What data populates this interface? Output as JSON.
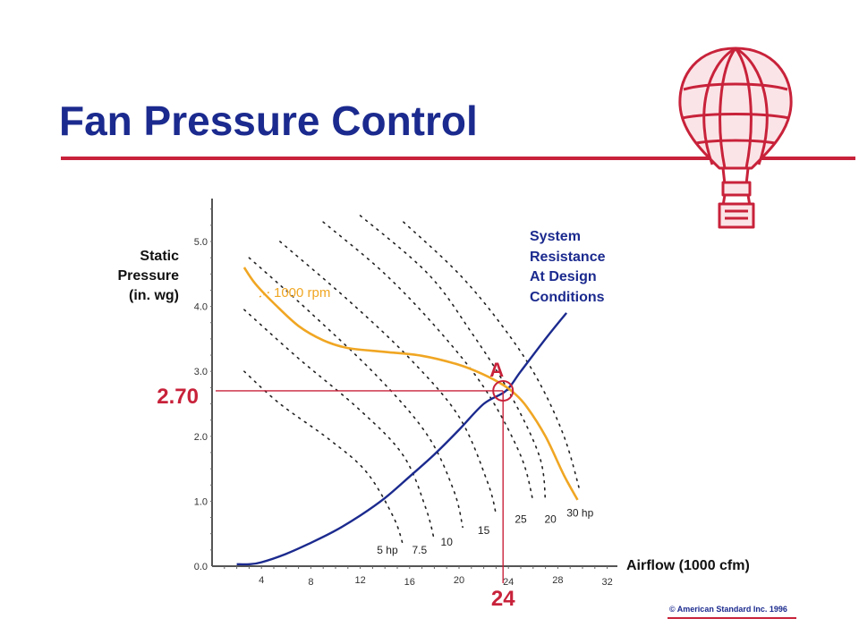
{
  "slide": {
    "title": "Fan Pressure Control",
    "copyright": "© American Standard Inc. 1996"
  },
  "colors": {
    "title": "#1b2a8e",
    "accent_red": "#c8223a",
    "fan_curve": "#f0a623",
    "system_curve": "#1b2a8e"
  },
  "chart_data": {
    "type": "line",
    "ylabel_lines": [
      "Static",
      "Pressure",
      "(in. wg)"
    ],
    "xlabel": "Airflow (1000 cfm)",
    "x_ticks": [
      "4",
      "8",
      "12",
      "16",
      "20",
      "24",
      "28",
      "32"
    ],
    "y_ticks": [
      "0.0",
      "1.0",
      "2.0",
      "3.0",
      "4.0",
      "5.0"
    ],
    "xlim": [
      0,
      32
    ],
    "ylim": [
      0,
      5.5
    ],
    "series": [
      {
        "name": "1000 rpm",
        "style": "solid",
        "x": [
          2.6,
          3.5,
          5,
          7,
          9,
          11,
          14,
          17,
          20,
          22,
          23.5,
          24.5,
          25.5,
          27,
          28.5,
          29.6
        ],
        "y": [
          4.6,
          4.35,
          4.05,
          3.7,
          3.48,
          3.36,
          3.3,
          3.24,
          3.1,
          2.95,
          2.8,
          2.66,
          2.45,
          2.0,
          1.4,
          1.02
        ]
      },
      {
        "name": "System Resistance At Design Conditions",
        "label_lines": [
          "System",
          "Resistance",
          "At Design",
          "Conditions"
        ],
        "style": "solid",
        "x": [
          2,
          3,
          4,
          6,
          8,
          10,
          12,
          14,
          16,
          18,
          20,
          22,
          23.8,
          25,
          27,
          28.7
        ],
        "y": [
          0.03,
          0.03,
          0.06,
          0.19,
          0.36,
          0.55,
          0.78,
          1.05,
          1.38,
          1.72,
          2.1,
          2.5,
          2.7,
          3.0,
          3.5,
          3.9
        ]
      }
    ],
    "hp_curves": [
      {
        "label": "5 hp",
        "x": [
          2.6,
          5.5,
          9.5,
          12.5,
          14.7,
          15.5
        ],
        "y": [
          3.0,
          2.5,
          1.95,
          1.45,
          0.75,
          0.3
        ]
      },
      {
        "label": "7.5",
        "x": [
          2.6,
          7,
          12,
          15.5,
          17.3,
          18
        ],
        "y": [
          3.95,
          3.2,
          2.4,
          1.7,
          0.9,
          0.4
        ]
      },
      {
        "label": "10",
        "x": [
          3,
          8,
          13.5,
          17.5,
          19.6,
          20.3
        ],
        "y": [
          4.75,
          3.9,
          2.9,
          2.0,
          1.15,
          0.6
        ]
      },
      {
        "label": "15",
        "x": [
          5.5,
          11,
          16,
          20,
          22.3,
          23
        ],
        "y": [
          5.0,
          4.1,
          3.2,
          2.3,
          1.3,
          0.8
        ]
      },
      {
        "label": "20",
        "x": [
          9,
          14,
          18.5,
          22.2,
          25,
          26
        ],
        "y": [
          5.3,
          4.5,
          3.6,
          2.7,
          1.7,
          1.0
        ]
      },
      {
        "label": "25",
        "x": [
          12,
          17.5,
          21,
          24,
          26.5,
          27
        ],
        "y": [
          5.4,
          4.5,
          3.6,
          2.7,
          1.7,
          1.0
        ]
      },
      {
        "label": "30 hp",
        "x": [
          15.5,
          20,
          23.5,
          26.3,
          28.5,
          29.8
        ],
        "y": [
          5.3,
          4.5,
          3.7,
          2.9,
          2.0,
          1.15
        ]
      }
    ],
    "hp_labels": [
      {
        "text": "5 hp",
        "x": 14.2,
        "y": 0.25
      },
      {
        "text": "7.5",
        "x": 16.8,
        "y": 0.25
      },
      {
        "text": "10",
        "x": 19.0,
        "y": 0.37
      },
      {
        "text": "15",
        "x": 22.0,
        "y": 0.55
      },
      {
        "text": "25",
        "x": 25.0,
        "y": 0.72
      },
      {
        "text": "20",
        "x": 27.4,
        "y": 0.72
      },
      {
        "text": "30 hp",
        "x": 29.8,
        "y": 0.82
      }
    ],
    "operating_point": {
      "label": "A",
      "x": 24,
      "y": 2.7,
      "x_callout": "24",
      "y_callout": "2.70"
    }
  }
}
